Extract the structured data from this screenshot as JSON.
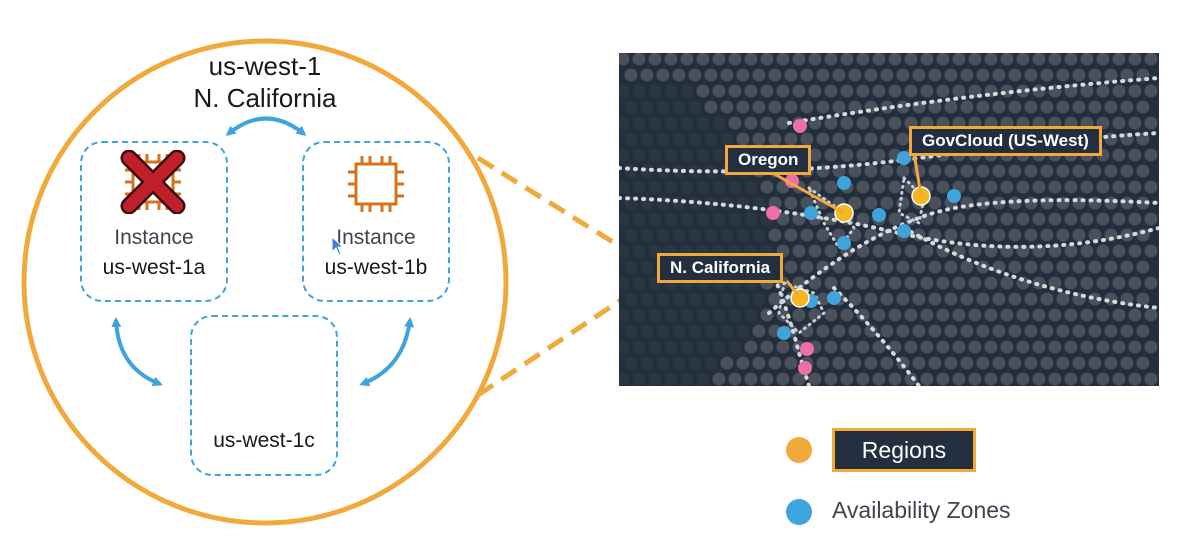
{
  "region": {
    "code": "us-west-1",
    "name": "N. California"
  },
  "zones": [
    {
      "id": "us-west-1a",
      "instance_label": "Instance",
      "status": "failed"
    },
    {
      "id": "us-west-1b",
      "instance_label": "Instance",
      "status": "healthy"
    },
    {
      "id": "us-west-1c",
      "instance_label": "",
      "status": "empty"
    }
  ],
  "map": {
    "labels": {
      "oregon": "Oregon",
      "govcloud": "GovCloud (US-West)",
      "n_california": "N. California"
    }
  },
  "legend": {
    "regions": "Regions",
    "availability_zones": "Availability Zones"
  },
  "colors": {
    "accent": "#f2a93b",
    "az_blue": "#3fa3dc",
    "region_yellow": "#f5b820",
    "failed_red": "#c0202a",
    "chip_orange": "#d6731e",
    "map_bg": "#232f3e",
    "pink_point": "#ee6ea6"
  },
  "icons": {
    "failed_instance": "chip-with-x-icon",
    "healthy_instance": "chip-icon",
    "replication": "bidirectional-arrow-icon"
  }
}
